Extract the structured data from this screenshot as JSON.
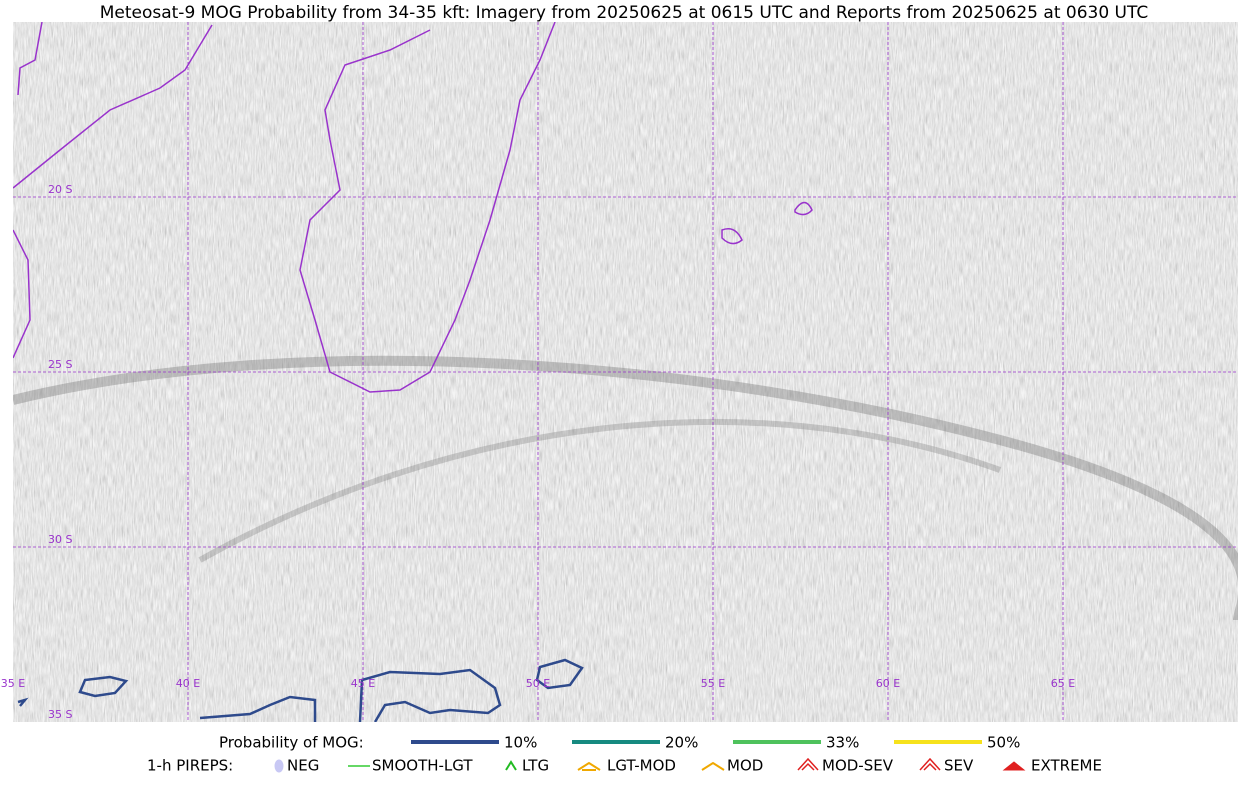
{
  "title": "Meteosat-9 MOG Probability from 34-35 kft: Imagery from 20250625 at 0615 UTC and Reports from 20250625 at 0630 UTC",
  "map": {
    "lat_labels": [
      "20 S",
      "25 S",
      "30 S",
      "35 S"
    ],
    "lon_labels": [
      "35 E",
      "40 E",
      "45 E",
      "50 E",
      "55 E",
      "60 E",
      "65 E"
    ]
  },
  "legend": {
    "probability_title": "Probability of MOG:",
    "probability": [
      {
        "label": "10%",
        "color": "#2e4a8c"
      },
      {
        "label": "20%",
        "color": "#168a80"
      },
      {
        "label": "33%",
        "color": "#4ec25c"
      },
      {
        "label": "50%",
        "color": "#f6e21c"
      }
    ],
    "pireps_title": "1-h PIREPS:",
    "pireps": [
      {
        "label": "NEG",
        "color": "#c8c8f4"
      },
      {
        "label": "SMOOTH-LGT",
        "color": "#33cc33"
      },
      {
        "label": "LTG",
        "color": "#22bb22"
      },
      {
        "label": "LGT-MOD",
        "color": "#f0a800"
      },
      {
        "label": "MOD",
        "color": "#f0a800"
      },
      {
        "label": "MOD-SEV",
        "color": "#e02020"
      },
      {
        "label": "SEV",
        "color": "#e02020"
      },
      {
        "label": "EXTREME",
        "color": "#e02020"
      }
    ]
  }
}
